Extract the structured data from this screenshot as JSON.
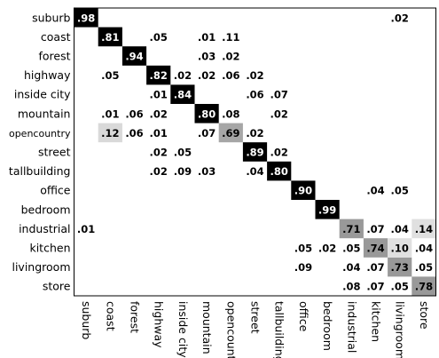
{
  "chart_data": {
    "type": "heatmap",
    "title": "",
    "xlabel": "",
    "ylabel": "",
    "rows": [
      "suburb",
      "coast",
      "forest",
      "highway",
      "inside city",
      "mountain",
      "opencountry",
      "street",
      "tallbuilding",
      "office",
      "bedroom",
      "industrial",
      "kitchen",
      "livingroom",
      "store"
    ],
    "columns": [
      "suburb",
      "coast",
      "forest",
      "highway",
      "inside city",
      "mountain",
      "opencountr",
      "street",
      "tallbuilding",
      "office",
      "bedroom",
      "industrial",
      "kitchen",
      "livingroom",
      "store"
    ],
    "cells": [
      {
        "row": 0,
        "col": 0,
        "value": 0.98,
        "label": ".98"
      },
      {
        "row": 0,
        "col": 13,
        "value": 0.02,
        "label": ".02"
      },
      {
        "row": 1,
        "col": 1,
        "value": 0.81,
        "label": ".81"
      },
      {
        "row": 1,
        "col": 3,
        "value": 0.05,
        "label": ".05"
      },
      {
        "row": 1,
        "col": 5,
        "value": 0.01,
        "label": ".01"
      },
      {
        "row": 1,
        "col": 6,
        "value": 0.11,
        "label": ".11"
      },
      {
        "row": 2,
        "col": 2,
        "value": 0.94,
        "label": ".94"
      },
      {
        "row": 2,
        "col": 5,
        "value": 0.03,
        "label": ".03"
      },
      {
        "row": 2,
        "col": 6,
        "value": 0.02,
        "label": ".02"
      },
      {
        "row": 3,
        "col": 1,
        "value": 0.05,
        "label": ".05"
      },
      {
        "row": 3,
        "col": 3,
        "value": 0.82,
        "label": ".82"
      },
      {
        "row": 3,
        "col": 4,
        "value": 0.02,
        "label": ".02"
      },
      {
        "row": 3,
        "col": 5,
        "value": 0.02,
        "label": ".02"
      },
      {
        "row": 3,
        "col": 6,
        "value": 0.06,
        "label": ".06"
      },
      {
        "row": 3,
        "col": 7,
        "value": 0.02,
        "label": ".02"
      },
      {
        "row": 4,
        "col": 3,
        "value": 0.01,
        "label": ".01"
      },
      {
        "row": 4,
        "col": 4,
        "value": 0.84,
        "label": ".84"
      },
      {
        "row": 4,
        "col": 7,
        "value": 0.06,
        "label": ".06"
      },
      {
        "row": 4,
        "col": 8,
        "value": 0.07,
        "label": ".07"
      },
      {
        "row": 5,
        "col": 1,
        "value": 0.01,
        "label": ".01"
      },
      {
        "row": 5,
        "col": 2,
        "value": 0.06,
        "label": ".06"
      },
      {
        "row": 5,
        "col": 3,
        "value": 0.02,
        "label": ".02"
      },
      {
        "row": 5,
        "col": 5,
        "value": 0.8,
        "label": ".80"
      },
      {
        "row": 5,
        "col": 6,
        "value": 0.08,
        "label": ".08"
      },
      {
        "row": 5,
        "col": 8,
        "value": 0.02,
        "label": ".02"
      },
      {
        "row": 6,
        "col": 1,
        "value": 0.12,
        "label": ".12"
      },
      {
        "row": 6,
        "col": 2,
        "value": 0.06,
        "label": ".06"
      },
      {
        "row": 6,
        "col": 3,
        "value": 0.01,
        "label": ".01"
      },
      {
        "row": 6,
        "col": 5,
        "value": 0.07,
        "label": ".07"
      },
      {
        "row": 6,
        "col": 6,
        "value": 0.69,
        "label": ".69"
      },
      {
        "row": 6,
        "col": 7,
        "value": 0.02,
        "label": ".02"
      },
      {
        "row": 7,
        "col": 3,
        "value": 0.02,
        "label": ".02"
      },
      {
        "row": 7,
        "col": 4,
        "value": 0.05,
        "label": ".05"
      },
      {
        "row": 7,
        "col": 7,
        "value": 0.89,
        "label": ".89"
      },
      {
        "row": 7,
        "col": 8,
        "value": 0.02,
        "label": ".02"
      },
      {
        "row": 8,
        "col": 3,
        "value": 0.02,
        "label": ".02"
      },
      {
        "row": 8,
        "col": 4,
        "value": 0.09,
        "label": ".09"
      },
      {
        "row": 8,
        "col": 5,
        "value": 0.03,
        "label": ".03"
      },
      {
        "row": 8,
        "col": 7,
        "value": 0.04,
        "label": ".04"
      },
      {
        "row": 8,
        "col": 8,
        "value": 0.8,
        "label": ".80"
      },
      {
        "row": 9,
        "col": 9,
        "value": 0.9,
        "label": ".90"
      },
      {
        "row": 9,
        "col": 12,
        "value": 0.04,
        "label": ".04"
      },
      {
        "row": 9,
        "col": 13,
        "value": 0.05,
        "label": ".05"
      },
      {
        "row": 10,
        "col": 10,
        "value": 0.99,
        "label": ".99"
      },
      {
        "row": 11,
        "col": 0,
        "value": 0.01,
        "label": ".01"
      },
      {
        "row": 11,
        "col": 11,
        "value": 0.71,
        "label": ".71"
      },
      {
        "row": 11,
        "col": 12,
        "value": 0.07,
        "label": ".07"
      },
      {
        "row": 11,
        "col": 13,
        "value": 0.04,
        "label": ".04"
      },
      {
        "row": 11,
        "col": 14,
        "value": 0.14,
        "label": ".14"
      },
      {
        "row": 12,
        "col": 9,
        "value": 0.05,
        "label": ".05"
      },
      {
        "row": 12,
        "col": 10,
        "value": 0.02,
        "label": ".02"
      },
      {
        "row": 12,
        "col": 11,
        "value": 0.05,
        "label": ".05"
      },
      {
        "row": 12,
        "col": 12,
        "value": 0.74,
        "label": ".74"
      },
      {
        "row": 12,
        "col": 13,
        "value": 0.1,
        "label": ".10"
      },
      {
        "row": 12,
        "col": 14,
        "value": 0.04,
        "label": ".04"
      },
      {
        "row": 13,
        "col": 9,
        "value": 0.09,
        "label": ".09"
      },
      {
        "row": 13,
        "col": 11,
        "value": 0.04,
        "label": ".04"
      },
      {
        "row": 13,
        "col": 12,
        "value": 0.07,
        "label": ".07"
      },
      {
        "row": 13,
        "col": 13,
        "value": 0.73,
        "label": ".73"
      },
      {
        "row": 13,
        "col": 14,
        "value": 0.05,
        "label": ".05"
      },
      {
        "row": 14,
        "col": 11,
        "value": 0.08,
        "label": ".08"
      },
      {
        "row": 14,
        "col": 12,
        "value": 0.07,
        "label": ".07"
      },
      {
        "row": 14,
        "col": 13,
        "value": 0.05,
        "label": ".05"
      },
      {
        "row": 14,
        "col": 14,
        "value": 0.78,
        "label": ".78"
      }
    ],
    "shaded_cells": [
      {
        "row": 0,
        "col": 0,
        "color": "#000000"
      },
      {
        "row": 1,
        "col": 1,
        "color": "#000000"
      },
      {
        "row": 2,
        "col": 2,
        "color": "#000000"
      },
      {
        "row": 3,
        "col": 3,
        "color": "#000000"
      },
      {
        "row": 4,
        "col": 4,
        "color": "#000000"
      },
      {
        "row": 5,
        "col": 5,
        "color": "#000000"
      },
      {
        "row": 6,
        "col": 6,
        "color": "#a6a6a6"
      },
      {
        "row": 7,
        "col": 7,
        "color": "#000000"
      },
      {
        "row": 8,
        "col": 8,
        "color": "#000000"
      },
      {
        "row": 9,
        "col": 9,
        "color": "#000000"
      },
      {
        "row": 10,
        "col": 10,
        "color": "#000000"
      },
      {
        "row": 11,
        "col": 11,
        "color": "#999999"
      },
      {
        "row": 12,
        "col": 12,
        "color": "#999999"
      },
      {
        "row": 13,
        "col": 13,
        "color": "#999999"
      },
      {
        "row": 14,
        "col": 14,
        "color": "#999999"
      },
      {
        "row": 6,
        "col": 1,
        "color": "#d9d9d9"
      },
      {
        "row": 11,
        "col": 14,
        "color": "#e0e0e0"
      },
      {
        "row": 12,
        "col": 13,
        "color": "#e0e0e0"
      }
    ],
    "grid": false,
    "legend": "none"
  }
}
